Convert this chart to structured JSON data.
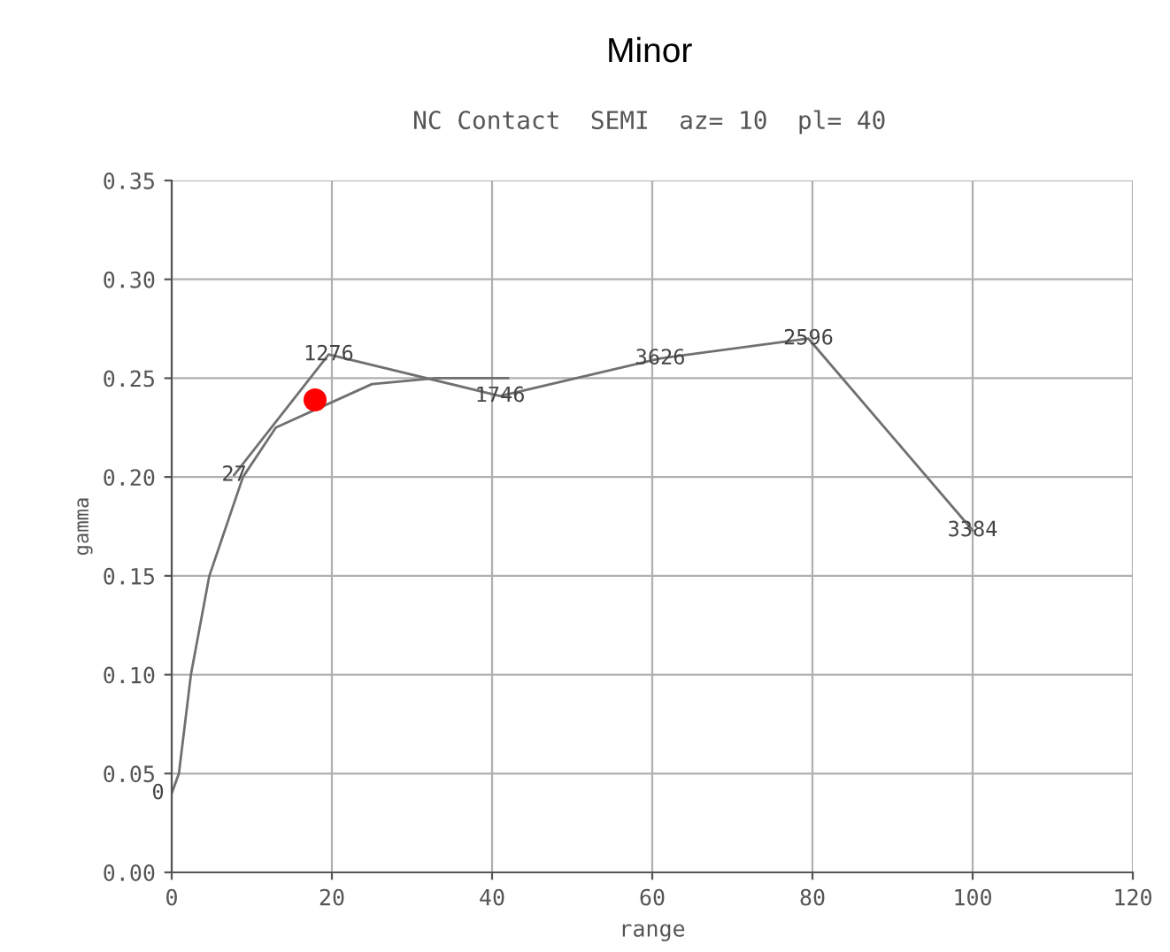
{
  "chart_data": {
    "type": "line",
    "title": "Minor",
    "subtitle": "NC Contact  SEMI  az= 10  pl= 40",
    "xlabel": "range",
    "ylabel": "gamma",
    "series": [
      {
        "color": "#707070",
        "x": [
          7.8,
          19.6,
          41,
          61,
          79.5,
          100
        ],
        "values": [
          0.201,
          0.262,
          0.241,
          0.26,
          0.27,
          0.173
        ]
      },
      {
        "color": "#707070",
        "x": [
          0,
          0.9,
          2.4,
          4.7,
          8.9,
          13,
          25,
          33,
          42
        ],
        "values": [
          0.04,
          0.05,
          0.1,
          0.15,
          0.2,
          0.225,
          0.247,
          0.25,
          0.25
        ]
      },
      {
        "type": "scatter",
        "color": "#ff0000",
        "marker": "circle",
        "x": [
          17.9
        ],
        "values": [
          0.239
        ]
      }
    ],
    "annotations": [
      {
        "text": "0",
        "x": 0,
        "y": 0.04
      },
      {
        "text": "27",
        "x": 7.8,
        "y": 0.201
      },
      {
        "text": "1276",
        "x": 19.6,
        "y": 0.262
      },
      {
        "text": "1746",
        "x": 41,
        "y": 0.241
      },
      {
        "text": "3626",
        "x": 61,
        "y": 0.26
      },
      {
        "text": "2596",
        "x": 79.5,
        "y": 0.27
      },
      {
        "text": "3384",
        "x": 100,
        "y": 0.173
      }
    ],
    "xlim": [
      0,
      120
    ],
    "xticks": [
      0,
      20,
      40,
      60,
      80,
      100,
      120
    ],
    "ylim": [
      0,
      0.35
    ],
    "yticks": [
      {
        "value": 0,
        "label": "0.00"
      },
      {
        "value": 0.05,
        "label": "0.05"
      },
      {
        "value": 0.1,
        "label": "0.10"
      },
      {
        "value": 0.15,
        "label": "0.15"
      },
      {
        "value": 0.2,
        "label": "0.20"
      },
      {
        "value": 0.25,
        "label": "0.25"
      },
      {
        "value": 0.3,
        "label": "0.30"
      },
      {
        "value": 0.35,
        "label": "0.35"
      }
    ],
    "grid": true,
    "marker": "none",
    "line_style": "solid"
  }
}
